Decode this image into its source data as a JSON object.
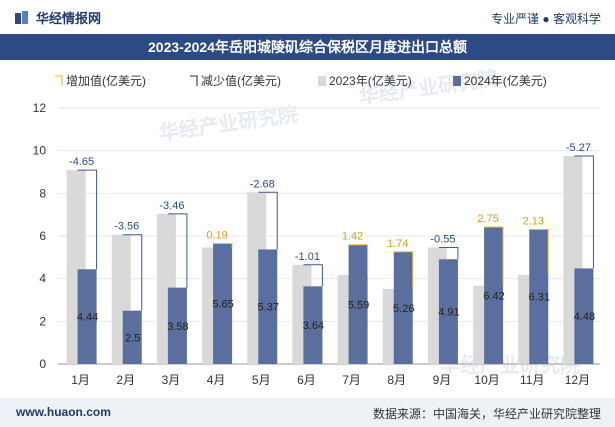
{
  "header": {
    "brand": "华经情报网",
    "tagline": "专业严谨 ● 客观科学",
    "title": "2023-2024年岳阳城陵矶综合保税区月度进出口总额"
  },
  "footer": {
    "site": "www.huaon.com",
    "source": "数据来源：中国海关，华经产业研究院整理"
  },
  "watermark": "华经产业研究院",
  "colors": {
    "title_band": "#2c4a86",
    "bar_2023": "#d9d9d9",
    "bar_2024": "#5b6f9e",
    "increase": "#f5c242",
    "decrease": "#3d5a8a"
  },
  "chart_data": {
    "type": "bar",
    "title": "2023-2024年岳阳城陵矶综合保税区月度进出口总额",
    "categories": [
      "1月",
      "2月",
      "3月",
      "4月",
      "5月",
      "6月",
      "7月",
      "8月",
      "9月",
      "10月",
      "11月",
      "12月"
    ],
    "legend": [
      "增加值(亿美元)",
      "减少值(亿美元)",
      "2023年(亿美元)",
      "2024年(亿美元)"
    ],
    "series": [
      {
        "name": "2023年(亿美元)",
        "values": [
          9.09,
          6.06,
          7.04,
          5.46,
          8.05,
          4.65,
          4.17,
          3.52,
          5.46,
          3.67,
          4.18,
          9.75
        ]
      },
      {
        "name": "2024年(亿美元)",
        "values": [
          4.44,
          2.5,
          3.58,
          5.65,
          5.37,
          3.64,
          5.59,
          5.26,
          4.91,
          6.42,
          6.31,
          4.48
        ]
      }
    ],
    "change_values": [
      -4.65,
      -3.56,
      -3.46,
      0.19,
      -2.68,
      -1.01,
      1.42,
      1.74,
      -0.55,
      2.75,
      2.13,
      -5.27
    ],
    "change_labels": [
      "-4.65",
      "-3.56",
      "-3.46",
      "0.19",
      "-2.68",
      "-1.01",
      "1.42",
      "1.74",
      "-0.55",
      "2.75",
      "2.13",
      "-5.27"
    ],
    "value_labels_2024": [
      "4.44",
      "2.5",
      "3.58",
      "5.65",
      "5.37",
      "3.64",
      "5.59",
      "5.26",
      "4.91",
      "6.42",
      "6.31",
      "4.48"
    ],
    "y_ticks": [
      "0",
      "2",
      "4",
      "6",
      "8",
      "10",
      "12"
    ],
    "ylim": [
      0,
      12
    ],
    "legend_position": "top"
  }
}
